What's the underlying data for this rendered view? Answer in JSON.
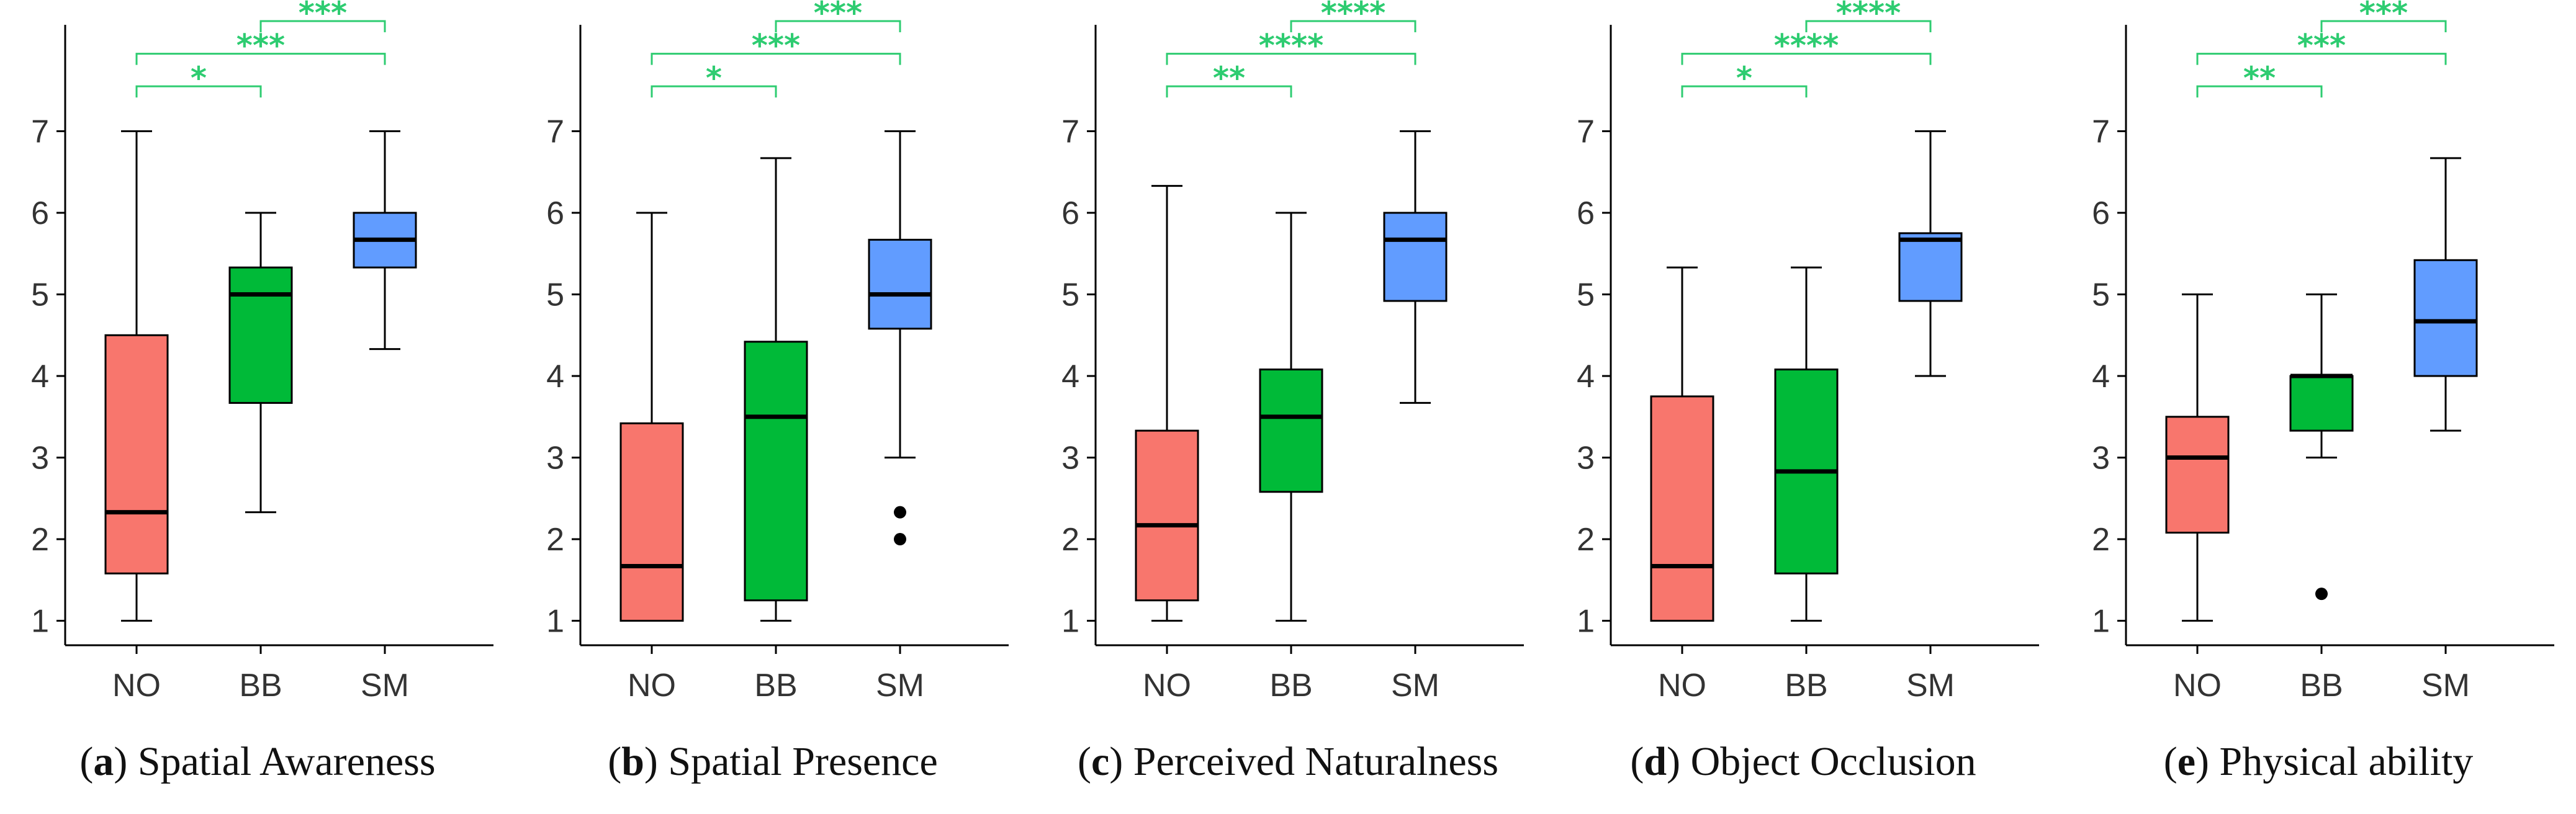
{
  "colors": {
    "NO": "#f8766d",
    "BB": "#00ba38",
    "SM": "#619cff",
    "significance": "#2ecc71",
    "axis": "#000000"
  },
  "chart_data": [
    {
      "type": "box",
      "panel": "a",
      "title": "Spatial Awareness",
      "categories": [
        "NO",
        "BB",
        "SM"
      ],
      "yticks": [
        1,
        2,
        3,
        4,
        5,
        6,
        7
      ],
      "ylim": [
        0.7,
        8.0
      ],
      "boxes": [
        {
          "group": "NO",
          "whisker_low": 1.0,
          "q1": 1.58,
          "median": 2.33,
          "q3": 4.5,
          "whisker_high": 7.0,
          "outliers": []
        },
        {
          "group": "BB",
          "whisker_low": 2.33,
          "q1": 3.67,
          "median": 5.0,
          "q3": 5.33,
          "whisker_high": 6.0,
          "outliers": []
        },
        {
          "group": "SM",
          "whisker_low": 4.33,
          "q1": 5.33,
          "median": 5.67,
          "q3": 6.0,
          "whisker_high": 7.0,
          "outliers": []
        }
      ],
      "significance": [
        {
          "from": "NO",
          "to": "BB",
          "label": "*"
        },
        {
          "from": "NO",
          "to": "SM",
          "label": "***"
        },
        {
          "from": "BB",
          "to": "SM",
          "label": "***"
        }
      ]
    },
    {
      "type": "box",
      "panel": "b",
      "title": "Spatial Presence",
      "categories": [
        "NO",
        "BB",
        "SM"
      ],
      "yticks": [
        1,
        2,
        3,
        4,
        5,
        6,
        7
      ],
      "ylim": [
        0.7,
        8.0
      ],
      "boxes": [
        {
          "group": "NO",
          "whisker_low": 1.0,
          "q1": 1.0,
          "median": 1.67,
          "q3": 3.42,
          "whisker_high": 6.0,
          "outliers": []
        },
        {
          "group": "BB",
          "whisker_low": 1.0,
          "q1": 1.25,
          "median": 3.5,
          "q3": 4.42,
          "whisker_high": 6.67,
          "outliers": []
        },
        {
          "group": "SM",
          "whisker_low": 3.0,
          "q1": 4.58,
          "median": 5.0,
          "q3": 5.67,
          "whisker_high": 7.0,
          "outliers": [
            2.33,
            2.0
          ]
        }
      ],
      "significance": [
        {
          "from": "NO",
          "to": "BB",
          "label": "*"
        },
        {
          "from": "NO",
          "to": "SM",
          "label": "***"
        },
        {
          "from": "BB",
          "to": "SM",
          "label": "***"
        }
      ]
    },
    {
      "type": "box",
      "panel": "c",
      "title": "Perceived Naturalness",
      "categories": [
        "NO",
        "BB",
        "SM"
      ],
      "yticks": [
        1,
        2,
        3,
        4,
        5,
        6,
        7
      ],
      "ylim": [
        0.7,
        8.0
      ],
      "boxes": [
        {
          "group": "NO",
          "whisker_low": 1.0,
          "q1": 1.25,
          "median": 2.17,
          "q3": 3.33,
          "whisker_high": 6.33,
          "outliers": []
        },
        {
          "group": "BB",
          "whisker_low": 1.0,
          "q1": 2.58,
          "median": 3.5,
          "q3": 4.08,
          "whisker_high": 6.0,
          "outliers": []
        },
        {
          "group": "SM",
          "whisker_low": 3.67,
          "q1": 4.92,
          "median": 5.67,
          "q3": 6.0,
          "whisker_high": 7.0,
          "outliers": []
        }
      ],
      "significance": [
        {
          "from": "NO",
          "to": "BB",
          "label": "**"
        },
        {
          "from": "NO",
          "to": "SM",
          "label": "****"
        },
        {
          "from": "BB",
          "to": "SM",
          "label": "****"
        }
      ]
    },
    {
      "type": "box",
      "panel": "d",
      "title": "Object Occlusion",
      "categories": [
        "NO",
        "BB",
        "SM"
      ],
      "yticks": [
        1,
        2,
        3,
        4,
        5,
        6,
        7
      ],
      "ylim": [
        0.7,
        8.0
      ],
      "boxes": [
        {
          "group": "NO",
          "whisker_low": 1.0,
          "q1": 1.0,
          "median": 1.67,
          "q3": 3.75,
          "whisker_high": 5.33,
          "outliers": []
        },
        {
          "group": "BB",
          "whisker_low": 1.0,
          "q1": 1.58,
          "median": 2.83,
          "q3": 4.08,
          "whisker_high": 5.33,
          "outliers": []
        },
        {
          "group": "SM",
          "whisker_low": 4.0,
          "q1": 4.92,
          "median": 5.67,
          "q3": 5.75,
          "whisker_high": 7.0,
          "outliers": []
        }
      ],
      "significance": [
        {
          "from": "NO",
          "to": "BB",
          "label": "*"
        },
        {
          "from": "NO",
          "to": "SM",
          "label": "****"
        },
        {
          "from": "BB",
          "to": "SM",
          "label": "****"
        }
      ]
    },
    {
      "type": "box",
      "panel": "e",
      "title": "Physical ability",
      "categories": [
        "NO",
        "BB",
        "SM"
      ],
      "yticks": [
        1,
        2,
        3,
        4,
        5,
        6,
        7
      ],
      "ylim": [
        0.7,
        8.0
      ],
      "boxes": [
        {
          "group": "NO",
          "whisker_low": 1.0,
          "q1": 2.08,
          "median": 3.0,
          "q3": 3.5,
          "whisker_high": 5.0,
          "outliers": []
        },
        {
          "group": "BB",
          "whisker_low": 3.0,
          "q1": 3.33,
          "median": 4.0,
          "q3": 4.0,
          "whisker_high": 5.0,
          "outliers": [
            1.33
          ]
        },
        {
          "group": "SM",
          "whisker_low": 3.33,
          "q1": 4.0,
          "median": 4.67,
          "q3": 5.42,
          "whisker_high": 6.67,
          "outliers": []
        }
      ],
      "significance": [
        {
          "from": "NO",
          "to": "BB",
          "label": "**"
        },
        {
          "from": "NO",
          "to": "SM",
          "label": "***"
        },
        {
          "from": "BB",
          "to": "SM",
          "label": "***"
        }
      ]
    }
  ]
}
